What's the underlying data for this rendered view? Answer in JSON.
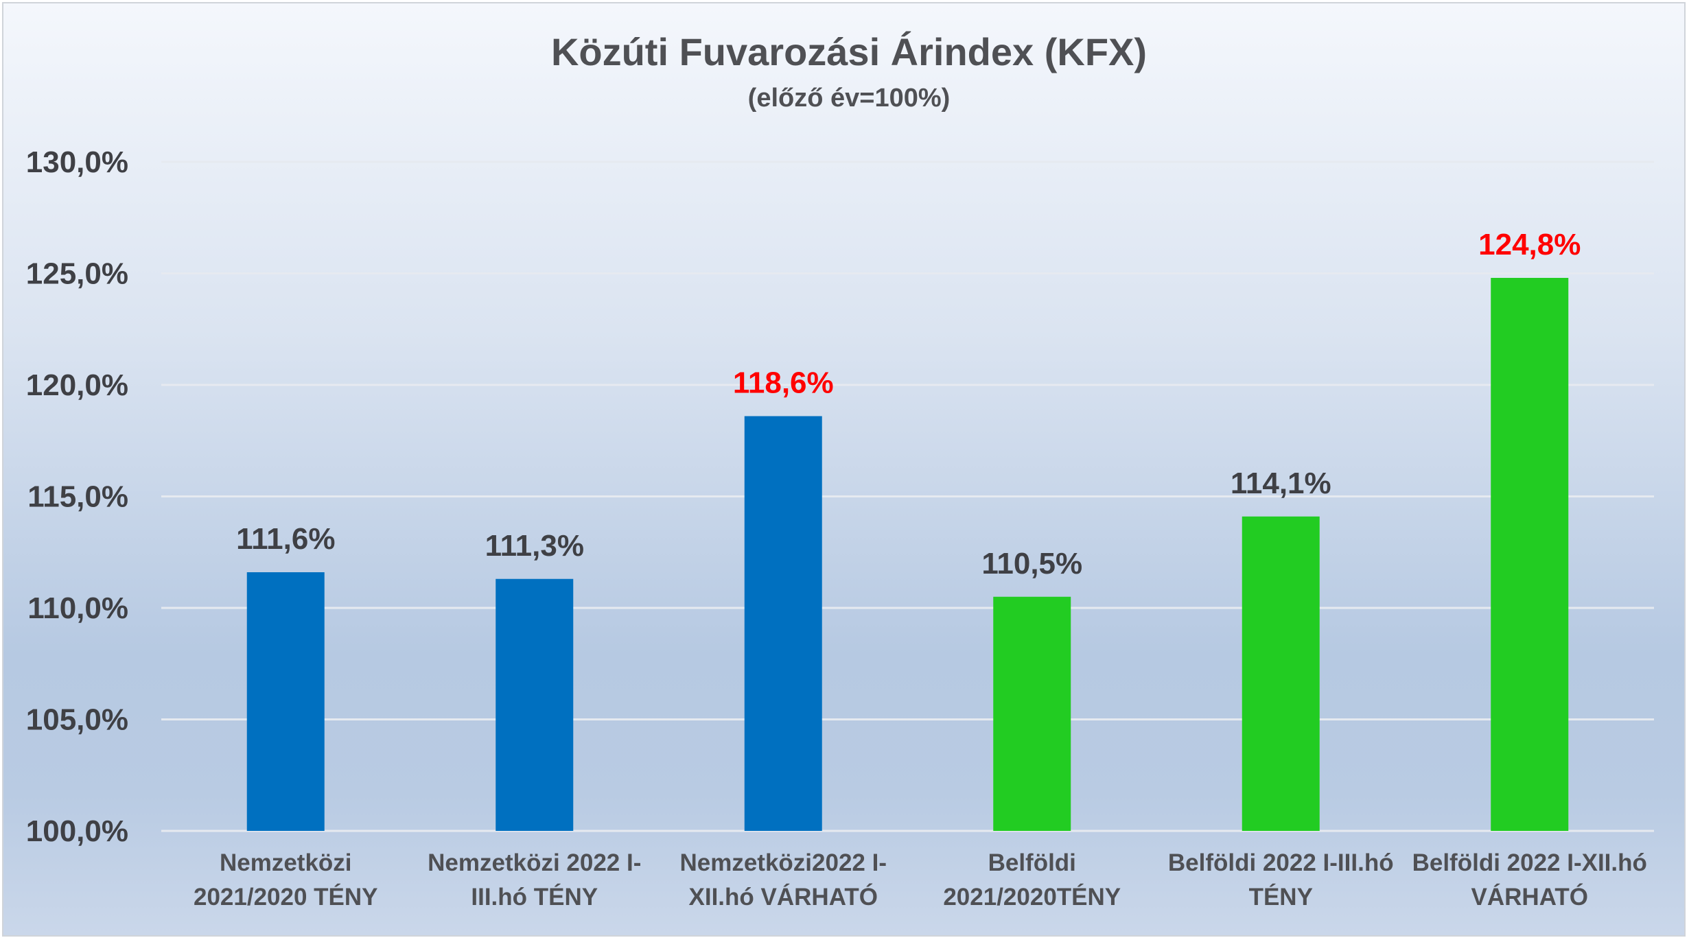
{
  "chart_data": {
    "type": "bar",
    "title": "Közúti Fuvarozási Árindex (KFX)",
    "subtitle": "(előző év=100%)",
    "categories": [
      [
        "Nemzetközi",
        "2021/2020 TÉNY"
      ],
      [
        "Nemzetközi 2022 I-",
        "III.hó TÉNY"
      ],
      [
        "Nemzetközi2022 I-",
        "XII.hó VÁRHATÓ"
      ],
      [
        "Belföldi",
        "2021/2020TÉNY"
      ],
      [
        "Belföldi 2022 I-III.hó",
        "TÉNY"
      ],
      [
        "Belföldi 2022 I-XII.hó",
        "VÁRHATÓ"
      ]
    ],
    "values": [
      111.6,
      111.3,
      118.6,
      110.5,
      114.1,
      124.8
    ],
    "data_labels": [
      "111,6%",
      "111,3%",
      "118,6%",
      "110,5%",
      "114,1%",
      "124,8%"
    ],
    "bar_colors": [
      "#0070c0",
      "#0070c0",
      "#0070c0",
      "#22cc22",
      "#22cc22",
      "#22cc22"
    ],
    "label_colors": [
      "#3f4045",
      "#3f4045",
      "#ff0000",
      "#3f4045",
      "#3f4045",
      "#ff0000"
    ],
    "ylim": [
      100,
      130
    ],
    "yticks": [
      100,
      105,
      110,
      115,
      120,
      125,
      130
    ],
    "ytick_labels": [
      "100,0%",
      "105,0%",
      "110,0%",
      "115,0%",
      "120,0%",
      "125,0%",
      "130,0%"
    ],
    "grid": true,
    "legend": "none"
  },
  "colors": {
    "gridline": "#e6eaf0",
    "title": "#4f5054"
  }
}
